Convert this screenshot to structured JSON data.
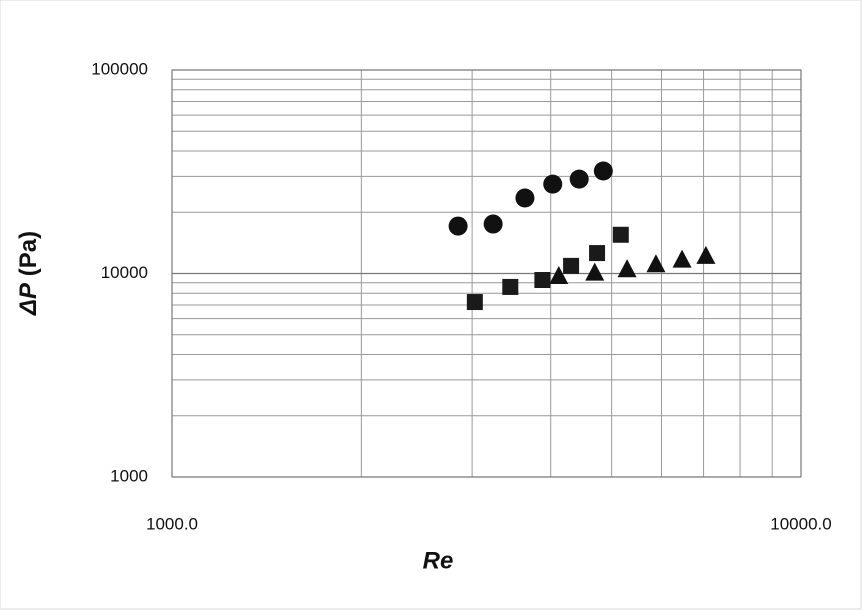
{
  "chart_data": {
    "type": "scatter",
    "log_x": true,
    "log_y": true,
    "grid": true,
    "xlabel": "Re",
    "ylabel": [
      "ΔP",
      "(Pa)"
    ],
    "xlim": [
      1000,
      10000
    ],
    "ylim": [
      1000,
      100000
    ],
    "xticks": [
      {
        "value": 1000,
        "label": "1000.0"
      },
      {
        "value": 10000,
        "label": "10000.0"
      }
    ],
    "yticks": [
      1000,
      10000,
      100000
    ],
    "xminorticks": [
      2000,
      3000,
      4000,
      5000,
      6000,
      7000,
      8000,
      9000
    ],
    "yminorticks": [
      2000,
      3000,
      4000,
      5000,
      6000,
      7000,
      8000,
      9000,
      20000,
      30000,
      40000,
      50000,
      60000,
      70000,
      80000,
      90000
    ],
    "series": [
      {
        "marker": "circle",
        "color": "#111111",
        "x": [
          2850,
          3240,
          3640,
          4030,
          4440,
          4850
        ],
        "values": [
          17100,
          17500,
          23500,
          27500,
          29100,
          31900
        ]
      },
      {
        "marker": "square",
        "color": "#1a1a1a",
        "x": [
          3030,
          3450,
          3880,
          4310,
          4740,
          5170
        ],
        "values": [
          7240,
          8590,
          9290,
          10900,
          12600,
          15500
        ]
      },
      {
        "marker": "triangle",
        "color": "#111111",
        "x": [
          4120,
          4700,
          5290,
          5880,
          6470,
          7060
        ],
        "values": [
          9720,
          10100,
          10500,
          11100,
          11700,
          12200
        ]
      }
    ]
  }
}
